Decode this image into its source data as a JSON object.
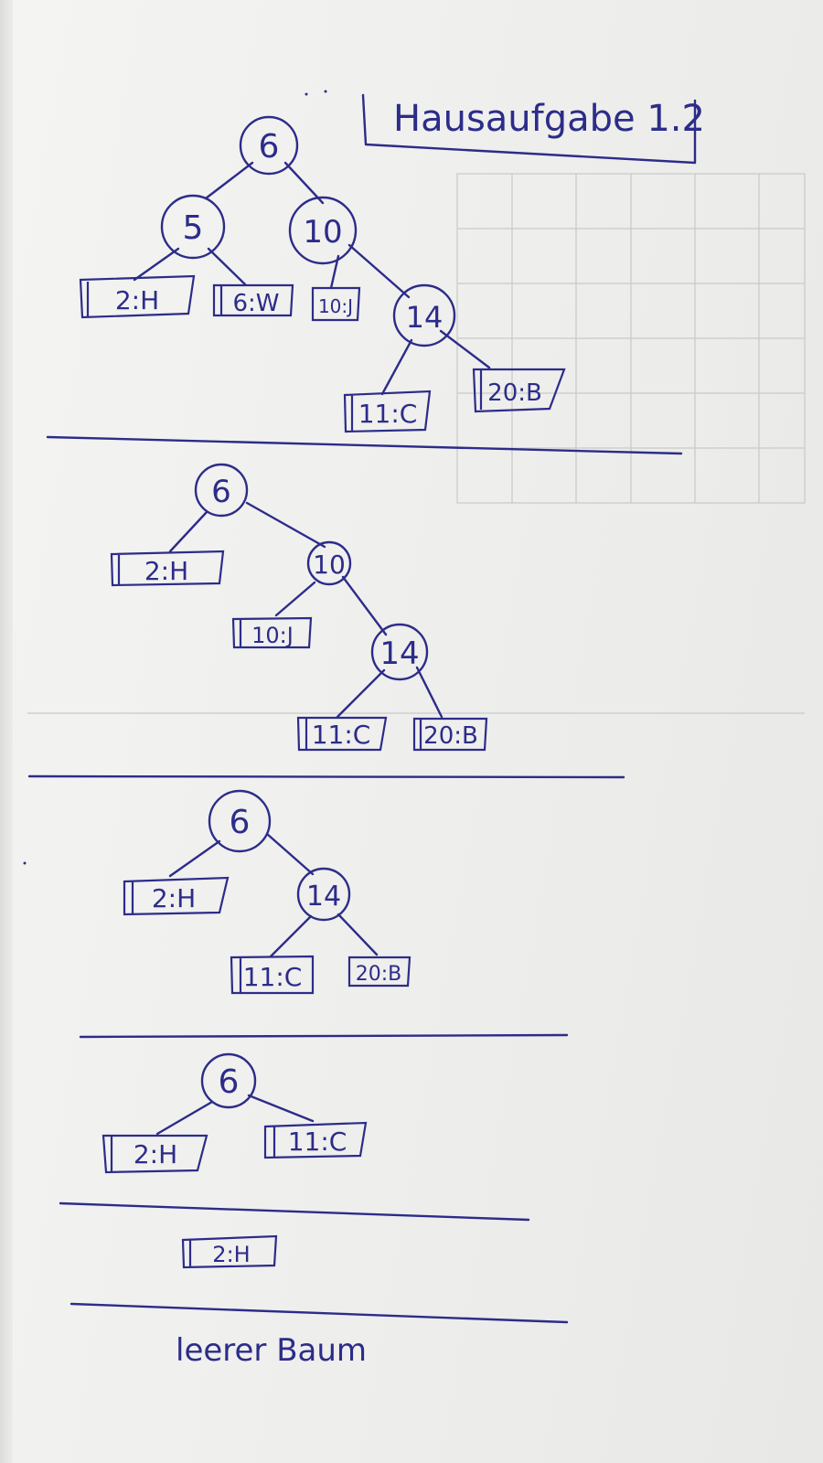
{
  "title": "Hausaufgabe 1.2",
  "trees": [
    {
      "nodes": [
        {
          "id": "n6",
          "label": "6"
        },
        {
          "id": "n5",
          "label": "5"
        },
        {
          "id": "n10",
          "label": "10"
        },
        {
          "id": "n14",
          "label": "14"
        }
      ],
      "leaves": [
        {
          "id": "l2",
          "label": "2:H"
        },
        {
          "id": "l6",
          "label": "6:W"
        },
        {
          "id": "l10",
          "label": "10:J"
        },
        {
          "id": "l11",
          "label": "11:C"
        },
        {
          "id": "l20",
          "label": "20:B"
        }
      ]
    },
    {
      "nodes": [
        {
          "id": "n6",
          "label": "6"
        },
        {
          "id": "n10",
          "label": "10"
        },
        {
          "id": "n14",
          "label": "14"
        }
      ],
      "leaves": [
        {
          "id": "l2",
          "label": "2:H"
        },
        {
          "id": "l10",
          "label": "10:J"
        },
        {
          "id": "l11",
          "label": "11:C"
        },
        {
          "id": "l20",
          "label": "20:B"
        }
      ]
    },
    {
      "nodes": [
        {
          "id": "n6",
          "label": "6"
        },
        {
          "id": "n14",
          "label": "14"
        }
      ],
      "leaves": [
        {
          "id": "l2",
          "label": "2:H"
        },
        {
          "id": "l11",
          "label": "11:C"
        },
        {
          "id": "l20",
          "label": "20:B"
        }
      ]
    },
    {
      "nodes": [
        {
          "id": "n6",
          "label": "6"
        }
      ],
      "leaves": [
        {
          "id": "l2",
          "label": "2:H"
        },
        {
          "id": "l11",
          "label": "11:C"
        }
      ]
    },
    {
      "nodes": [],
      "leaves": [
        {
          "id": "l2",
          "label": "2:H"
        }
      ]
    }
  ],
  "footer": "leerer Baum",
  "colors": {
    "ink": "#2c2c8a",
    "paper": "#f1f1ef"
  }
}
